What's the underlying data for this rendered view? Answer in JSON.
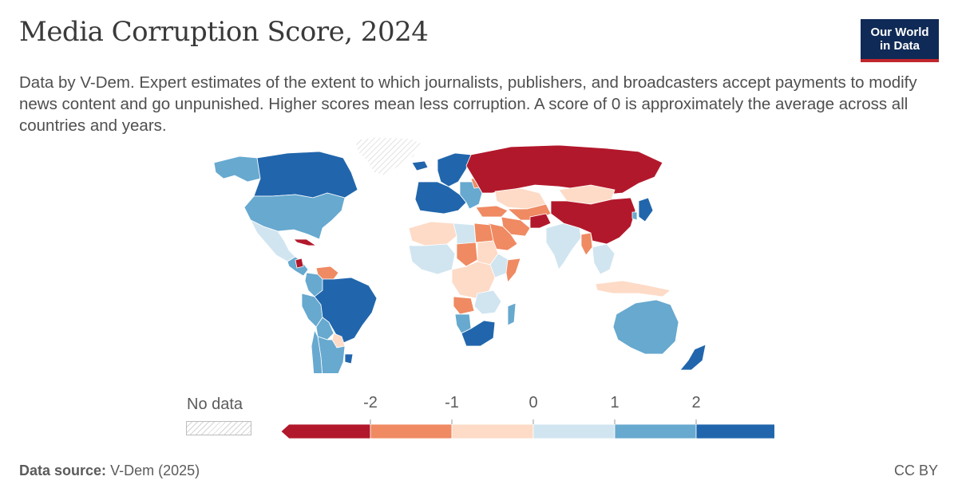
{
  "header": {
    "title": "Media Corruption Score, 2024",
    "subtitle": "Data by V-Dem. Expert estimates of the extent to which journalists, publishers, and broadcasters accept payments to modify news content and go unpunished. Higher scores mean less corruption. A score of 0 is approximately the average across all countries and years.",
    "logo_line1": "Our World",
    "logo_line2": "in Data"
  },
  "legend": {
    "no_data_label": "No data",
    "ticks": [
      "-2",
      "-1",
      "0",
      "1",
      "2"
    ],
    "bins": [
      {
        "label": "< -2",
        "color": "#b2182b"
      },
      {
        "label": "-2 to -1",
        "color": "#ef8a62"
      },
      {
        "label": "-1 to 0",
        "color": "#fddbc7"
      },
      {
        "label": "0 to 1",
        "color": "#d1e5f0"
      },
      {
        "label": "1 to 2",
        "color": "#67a9cf"
      },
      {
        "label": "> 2",
        "color": "#2166ac"
      }
    ],
    "no_data_color": "#e0e0e0"
  },
  "map_data": {
    "regions": [
      {
        "name": "Alaska",
        "bin": 4
      },
      {
        "name": "Canada",
        "bin": 5
      },
      {
        "name": "United States",
        "bin": 4
      },
      {
        "name": "Greenland",
        "bin": -1
      },
      {
        "name": "Mexico",
        "bin": 3
      },
      {
        "name": "Central America",
        "bin": 4
      },
      {
        "name": "Nicaragua",
        "bin": 0
      },
      {
        "name": "Cuba",
        "bin": 0
      },
      {
        "name": "Venezuela",
        "bin": 1
      },
      {
        "name": "Colombia",
        "bin": 4
      },
      {
        "name": "Peru",
        "bin": 4
      },
      {
        "name": "Brazil",
        "bin": 5
      },
      {
        "name": "Bolivia",
        "bin": 4
      },
      {
        "name": "Paraguay",
        "bin": 2
      },
      {
        "name": "Argentina",
        "bin": 4
      },
      {
        "name": "Chile",
        "bin": 4
      },
      {
        "name": "Uruguay",
        "bin": 5
      },
      {
        "name": "Iceland",
        "bin": 5
      },
      {
        "name": "Scandinavia",
        "bin": 5
      },
      {
        "name": "Western Europe",
        "bin": 5
      },
      {
        "name": "Eastern Europe",
        "bin": 4
      },
      {
        "name": "Belarus",
        "bin": 1
      },
      {
        "name": "Russia",
        "bin": 0
      },
      {
        "name": "Turkey",
        "bin": 1
      },
      {
        "name": "Kazakhstan",
        "bin": 2
      },
      {
        "name": "Central Asia",
        "bin": 1
      },
      {
        "name": "Iran",
        "bin": 1
      },
      {
        "name": "Saudi Arabia",
        "bin": 1
      },
      {
        "name": "Afghanistan",
        "bin": 0
      },
      {
        "name": "India",
        "bin": 3
      },
      {
        "name": "Myanmar",
        "bin": 1
      },
      {
        "name": "Mongolia",
        "bin": 2
      },
      {
        "name": "China",
        "bin": 0
      },
      {
        "name": "Japan",
        "bin": 5
      },
      {
        "name": "South Korea",
        "bin": 4
      },
      {
        "name": "Southeast Asia",
        "bin": 3
      },
      {
        "name": "Indonesia",
        "bin": 2
      },
      {
        "name": "Australia",
        "bin": 4
      },
      {
        "name": "New Zealand",
        "bin": 5
      },
      {
        "name": "North Africa",
        "bin": 2
      },
      {
        "name": "Libya",
        "bin": 3
      },
      {
        "name": "Egypt",
        "bin": 1
      },
      {
        "name": "West Africa",
        "bin": 3
      },
      {
        "name": "Chad",
        "bin": 1
      },
      {
        "name": "Sudan",
        "bin": 2
      },
      {
        "name": "Ethiopia",
        "bin": 3
      },
      {
        "name": "Somalia",
        "bin": 1
      },
      {
        "name": "Central Africa",
        "bin": 2
      },
      {
        "name": "Angola",
        "bin": 1
      },
      {
        "name": "East Africa",
        "bin": 3
      },
      {
        "name": "Namibia",
        "bin": 4
      },
      {
        "name": "South Africa",
        "bin": 5
      },
      {
        "name": "Madagascar",
        "bin": 4
      }
    ]
  },
  "footer": {
    "source_label": "Data source:",
    "source_value": "V-Dem (2025)",
    "license": "CC BY"
  }
}
